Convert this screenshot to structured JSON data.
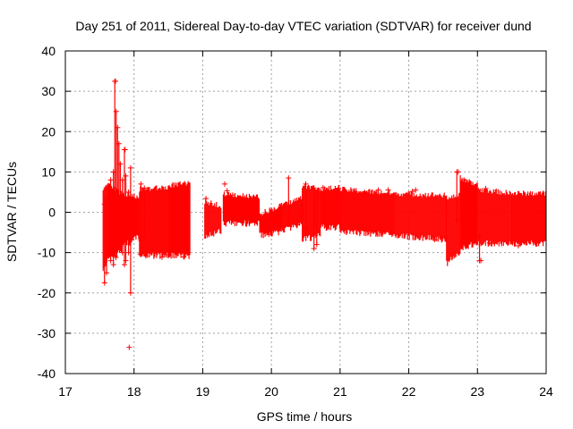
{
  "chart_data": {
    "type": "scatter",
    "title": "Day 251 of 2011, Sidereal Day-to-day VTEC variation (SDTVAR) for receiver dund",
    "xlabel": "GPS time / hours",
    "ylabel": "SDTVAR / TECUs",
    "xlim": [
      17,
      24
    ],
    "ylim": [
      -40,
      40
    ],
    "x_ticks": [
      17,
      18,
      19,
      20,
      21,
      22,
      23,
      24
    ],
    "y_ticks": [
      -40,
      -30,
      -20,
      -10,
      0,
      10,
      20,
      30,
      40
    ],
    "x_tick_labels": [
      "17",
      "18",
      "19",
      "20",
      "21",
      "22",
      "23",
      "24"
    ],
    "y_tick_labels": [
      "-40",
      "-30",
      "-20",
      "-10",
      "0",
      "10",
      "20",
      "30",
      "40"
    ],
    "grid": true,
    "series_color": "#ff0000",
    "envelope": [
      {
        "t0": 17.55,
        "t1": 17.62,
        "lo0": -13,
        "lo1": -11,
        "hi0": 5,
        "hi1": 6,
        "density": 40
      },
      {
        "t0": 17.62,
        "t1": 17.82,
        "lo0": -11,
        "lo1": -9,
        "hi0": 6,
        "hi1": 4,
        "density": 40
      },
      {
        "t0": 17.82,
        "t1": 18.08,
        "lo0": -8,
        "lo1": -5,
        "hi0": 4,
        "hi1": 3,
        "density": 40
      },
      {
        "t0": 18.08,
        "t1": 18.5,
        "lo0": -10,
        "lo1": -10,
        "hi0": 5,
        "hi1": 5.5,
        "density": 40
      },
      {
        "t0": 18.5,
        "t1": 18.82,
        "lo0": -10,
        "lo1": -10,
        "hi0": 6,
        "hi1": 6.5,
        "density": 40
      },
      {
        "t0": 19.03,
        "t1": 19.27,
        "lo0": -5,
        "lo1": -4,
        "hi0": 2,
        "hi1": 1,
        "density": 40
      },
      {
        "t0": 19.3,
        "t1": 19.83,
        "lo0": -2,
        "lo1": -2,
        "hi0": 4,
        "hi1": 3,
        "density": 40
      },
      {
        "t0": 19.83,
        "t1": 20.15,
        "lo0": -5,
        "lo1": -4,
        "hi0": -1,
        "hi1": 1,
        "density": 40
      },
      {
        "t0": 20.15,
        "t1": 20.45,
        "lo0": -4,
        "lo1": -2,
        "hi0": 1,
        "hi1": 3,
        "density": 40
      },
      {
        "t0": 20.45,
        "t1": 20.72,
        "lo0": -6,
        "lo1": -5,
        "hi0": 6,
        "hi1": 5,
        "density": 40
      },
      {
        "t0": 20.72,
        "t1": 21.0,
        "lo0": -3,
        "lo1": -3,
        "hi0": 5,
        "hi1": 5.5,
        "density": 40
      },
      {
        "t0": 21.0,
        "t1": 21.8,
        "lo0": -4,
        "lo1": -5,
        "hi0": 5,
        "hi1": 4,
        "density": 40
      },
      {
        "t0": 21.8,
        "t1": 22.55,
        "lo0": -5,
        "lo1": -6,
        "hi0": 4,
        "hi1": 3.5,
        "density": 40
      },
      {
        "t0": 22.55,
        "t1": 22.75,
        "lo0": -12,
        "lo1": -9,
        "hi0": 3,
        "hi1": 3.5,
        "density": 40
      },
      {
        "t0": 22.75,
        "t1": 23.0,
        "lo0": -8,
        "lo1": -7,
        "hi0": 8,
        "hi1": 6,
        "density": 40
      },
      {
        "t0": 23.0,
        "t1": 23.5,
        "lo0": -7,
        "lo1": -7,
        "hi0": 5,
        "hi1": 4,
        "density": 40
      },
      {
        "t0": 23.5,
        "t1": 24.0,
        "lo0": -7,
        "lo1": -7,
        "hi0": 4,
        "hi1": 4,
        "density": 40
      }
    ],
    "spikes": [
      {
        "t": 17.57,
        "lo": -17.5,
        "hi": 2
      },
      {
        "t": 17.6,
        "lo": -15,
        "hi": 3
      },
      {
        "t": 17.66,
        "lo": -12,
        "hi": 8
      },
      {
        "t": 17.68,
        "lo": -10,
        "hi": 5
      },
      {
        "t": 17.7,
        "lo": -13,
        "hi": 10
      },
      {
        "t": 17.72,
        "lo": -5,
        "hi": 32.5
      },
      {
        "t": 17.74,
        "lo": -9,
        "hi": 25
      },
      {
        "t": 17.76,
        "lo": -8,
        "hi": 21
      },
      {
        "t": 17.78,
        "lo": -6,
        "hi": 17
      },
      {
        "t": 17.8,
        "lo": -9,
        "hi": 12
      },
      {
        "t": 17.83,
        "lo": -10,
        "hi": 8
      },
      {
        "t": 17.86,
        "lo": -13,
        "hi": 15.5
      },
      {
        "t": 17.88,
        "lo": -12,
        "hi": 9
      },
      {
        "t": 17.92,
        "lo": -10,
        "hi": 5
      },
      {
        "t": 17.95,
        "lo": -20,
        "hi": 11
      },
      {
        "t": 18.1,
        "lo": -7,
        "hi": 7
      },
      {
        "t": 18.15,
        "lo": -6,
        "hi": 6
      },
      {
        "t": 20.25,
        "lo": -3,
        "hi": 8.5
      },
      {
        "t": 20.5,
        "lo": -4,
        "hi": 7
      },
      {
        "t": 20.62,
        "lo": -9,
        "hi": 6
      },
      {
        "t": 20.66,
        "lo": -8,
        "hi": 5
      },
      {
        "t": 22.7,
        "lo": -2,
        "hi": 10
      },
      {
        "t": 23.03,
        "lo": -12,
        "hi": -6
      }
    ],
    "outliers": [
      {
        "x": 17.93,
        "y": -33.5
      },
      {
        "x": 19.32,
        "y": 7
      },
      {
        "x": 17.73,
        "y": 32.5
      },
      {
        "x": 17.87,
        "y": 15.5
      },
      {
        "x": 21.7,
        "y": 5.5
      },
      {
        "x": 22.1,
        "y": 5.5
      },
      {
        "x": 23.05,
        "y": -12
      },
      {
        "x": 22.72,
        "y": 10
      }
    ]
  }
}
